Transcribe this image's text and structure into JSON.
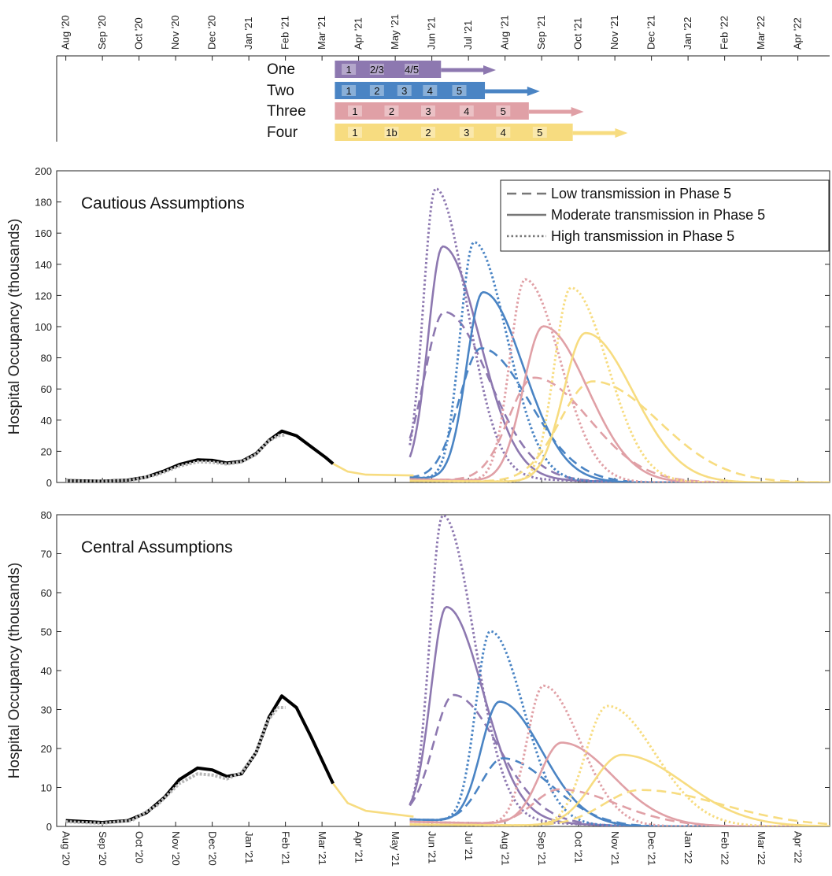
{
  "chart_data": {
    "months": [
      "Aug '20",
      "Sep '20",
      "Oct '20",
      "Nov '20",
      "Dec '20",
      "Jan '21",
      "Feb '21",
      "Mar '21",
      "Apr '21",
      "May '21",
      "Jun '21",
      "Jul '21",
      "Aug '21",
      "Sep '21",
      "Oct '21",
      "Nov '21",
      "Dec '21",
      "Jan '22",
      "Feb '22",
      "Mar '22",
      "Apr '22"
    ],
    "roadmap": {
      "scenarios": [
        {
          "name": "One",
          "color": "#8d78b0",
          "end_month": 2.9,
          "arrow_end": 4.4,
          "phases": [
            {
              "label": "1",
              "at": 0.38
            },
            {
              "label": "2/3",
              "at": 1.15
            },
            {
              "label": "4/5",
              "at": 2.1
            }
          ]
        },
        {
          "name": "Two",
          "color": "#4a84c4",
          "end_month": 4.1,
          "arrow_end": 5.6,
          "phases": [
            {
              "label": "1",
              "at": 0.38
            },
            {
              "label": "2",
              "at": 1.15
            },
            {
              "label": "3",
              "at": 1.9
            },
            {
              "label": "4",
              "at": 2.6
            },
            {
              "label": "5",
              "at": 3.4
            }
          ]
        },
        {
          "name": "Three",
          "color": "#e0a0a6",
          "end_month": 5.3,
          "arrow_end": 6.8,
          "phases": [
            {
              "label": "1",
              "at": 0.55
            },
            {
              "label": "2",
              "at": 1.55
            },
            {
              "label": "3",
              "at": 2.55
            },
            {
              "label": "4",
              "at": 3.6
            },
            {
              "label": "5",
              "at": 4.6
            }
          ]
        },
        {
          "name": "Four",
          "color": "#f7dc80",
          "end_month": 6.5,
          "arrow_end": 8.0,
          "phases": [
            {
              "label": "1",
              "at": 0.55
            },
            {
              "label": "1b",
              "at": 1.55
            },
            {
              "label": "2",
              "at": 2.55
            },
            {
              "label": "3",
              "at": 3.6
            },
            {
              "label": "4",
              "at": 4.6
            },
            {
              "label": "5",
              "at": 5.6
            }
          ]
        }
      ]
    },
    "legend": [
      {
        "label": "Low transmission in Phase 5",
        "style": "dashed"
      },
      {
        "label": "Moderate transmission in Phase 5",
        "style": "solid"
      },
      {
        "label": "High transmission in Phase 5",
        "style": "dotted"
      }
    ],
    "panels": [
      {
        "title": "Cautious Assumptions",
        "ylabel": "Hospital Occupancy (thousands)",
        "ylim": [
          0,
          200
        ],
        "yticks": [
          0,
          20,
          40,
          60,
          80,
          100,
          120,
          140,
          160,
          180,
          200
        ],
        "history_points": [
          [
            0,
            1.2
          ],
          [
            1,
            0.8
          ],
          [
            1.7,
            1.5
          ],
          [
            2.2,
            3.5
          ],
          [
            2.7,
            7.5
          ],
          [
            3.1,
            11.5
          ],
          [
            3.6,
            14.5
          ],
          [
            4.0,
            14.2
          ],
          [
            4.4,
            12.5
          ],
          [
            4.8,
            13.5
          ],
          [
            5.2,
            18.5
          ],
          [
            5.55,
            27
          ],
          [
            5.9,
            33
          ],
          [
            6.3,
            30
          ],
          [
            6.7,
            23
          ],
          [
            7.1,
            16
          ],
          [
            7.3,
            12
          ]
        ],
        "observed_points": [
          [
            0,
            1.0
          ],
          [
            1,
            0.7
          ],
          [
            1.8,
            1.5
          ],
          [
            2.5,
            5
          ],
          [
            3.1,
            10.5
          ],
          [
            3.6,
            13.2
          ],
          [
            4.0,
            13.0
          ],
          [
            4.4,
            11.8
          ],
          [
            4.8,
            13.2
          ],
          [
            5.2,
            18
          ],
          [
            5.5,
            26
          ],
          [
            5.8,
            30
          ],
          [
            6.0,
            30.5
          ]
        ],
        "bridge_points": [
          [
            7.3,
            12
          ],
          [
            7.7,
            7
          ],
          [
            8.2,
            5
          ],
          [
            9.5,
            4.5
          ]
        ],
        "curves": [
          {
            "scenario": "One",
            "style": "dashed",
            "peak": {
              "month": 10.35,
              "value": 107
            },
            "floor": 4.5,
            "start": 9.4,
            "w_rise": 0.55,
            "w_fall": 1.2
          },
          {
            "scenario": "One",
            "style": "solid",
            "peak": {
              "month": 10.3,
              "value": 149
            },
            "floor": 4.5,
            "start": 9.4,
            "w_rise": 0.4,
            "w_fall": 1.0
          },
          {
            "scenario": "One",
            "style": "dotted",
            "peak": {
              "month": 10.1,
              "value": 186
            },
            "floor": 4.5,
            "start": 9.4,
            "w_rise": 0.33,
            "w_fall": 0.85
          },
          {
            "scenario": "Two",
            "style": "dashed",
            "peak": {
              "month": 11.35,
              "value": 85
            },
            "floor": 3,
            "start": 9.4,
            "w_rise": 0.6,
            "w_fall": 1.3
          },
          {
            "scenario": "Two",
            "style": "solid",
            "peak": {
              "month": 11.4,
              "value": 121
            },
            "floor": 3,
            "start": 9.4,
            "w_rise": 0.45,
            "w_fall": 1.1
          },
          {
            "scenario": "Two",
            "style": "dotted",
            "peak": {
              "month": 11.15,
              "value": 153
            },
            "floor": 3,
            "start": 9.4,
            "w_rise": 0.38,
            "w_fall": 0.9
          },
          {
            "scenario": "Three",
            "style": "dashed",
            "peak": {
              "month": 12.8,
              "value": 67
            },
            "floor": 2,
            "start": 9.4,
            "w_rise": 0.7,
            "w_fall": 1.5
          },
          {
            "scenario": "Three",
            "style": "solid",
            "peak": {
              "month": 13.05,
              "value": 100
            },
            "floor": 2,
            "start": 9.4,
            "w_rise": 0.55,
            "w_fall": 1.2
          },
          {
            "scenario": "Three",
            "style": "dotted",
            "peak": {
              "month": 12.55,
              "value": 130
            },
            "floor": 2,
            "start": 9.4,
            "w_rise": 0.42,
            "w_fall": 0.95
          },
          {
            "scenario": "Four",
            "style": "dashed",
            "peak": {
              "month": 14.4,
              "value": 65
            },
            "floor": 1,
            "start": 9.4,
            "w_rise": 0.9,
            "w_fall": 1.8
          },
          {
            "scenario": "Four",
            "style": "solid",
            "peak": {
              "month": 14.2,
              "value": 96
            },
            "floor": 1,
            "start": 9.4,
            "w_rise": 0.6,
            "w_fall": 1.3
          },
          {
            "scenario": "Four",
            "style": "dotted",
            "peak": {
              "month": 13.8,
              "value": 125
            },
            "floor": 1,
            "start": 9.4,
            "w_rise": 0.45,
            "w_fall": 1.0
          }
        ]
      },
      {
        "title": "Central Assumptions",
        "ylabel": "Hospital Occupancy (thousands)",
        "ylim": [
          0,
          80
        ],
        "yticks": [
          0,
          10,
          20,
          30,
          40,
          50,
          60,
          70,
          80
        ],
        "history_points": [
          [
            0,
            1.5
          ],
          [
            1,
            1.0
          ],
          [
            1.7,
            1.5
          ],
          [
            2.2,
            3.5
          ],
          [
            2.7,
            7.5
          ],
          [
            3.1,
            12
          ],
          [
            3.6,
            15
          ],
          [
            4.0,
            14.5
          ],
          [
            4.4,
            12.8
          ],
          [
            4.8,
            13.5
          ],
          [
            5.2,
            19
          ],
          [
            5.55,
            28
          ],
          [
            5.9,
            33.5
          ],
          [
            6.3,
            30.5
          ],
          [
            6.7,
            23
          ],
          [
            7.1,
            15
          ],
          [
            7.3,
            11
          ]
        ],
        "observed_points": [
          [
            0,
            1.2
          ],
          [
            1,
            0.8
          ],
          [
            1.8,
            1.5
          ],
          [
            2.5,
            5.5
          ],
          [
            3.1,
            11
          ],
          [
            3.6,
            13.5
          ],
          [
            4.0,
            13.2
          ],
          [
            4.4,
            12.2
          ],
          [
            4.8,
            13.8
          ],
          [
            5.2,
            19
          ],
          [
            5.5,
            27
          ],
          [
            5.8,
            30.5
          ],
          [
            6.0,
            30.5
          ]
        ],
        "bridge_points": [
          [
            7.3,
            11
          ],
          [
            7.7,
            6
          ],
          [
            8.2,
            4
          ],
          [
            9.5,
            2.5
          ]
        ],
        "curves": [
          {
            "scenario": "One",
            "style": "dashed",
            "peak": {
              "month": 10.6,
              "value": 32.5
            },
            "floor": 2.5,
            "start": 9.4,
            "w_rise": 0.55,
            "w_fall": 1.2
          },
          {
            "scenario": "One",
            "style": "solid",
            "peak": {
              "month": 10.4,
              "value": 55
            },
            "floor": 2.5,
            "start": 9.4,
            "w_rise": 0.42,
            "w_fall": 1.0
          },
          {
            "scenario": "One",
            "style": "dotted",
            "peak": {
              "month": 10.3,
              "value": 78.5
            },
            "floor": 2.5,
            "start": 9.4,
            "w_rise": 0.35,
            "w_fall": 0.85
          },
          {
            "scenario": "Two",
            "style": "dashed",
            "peak": {
              "month": 11.95,
              "value": 17
            },
            "floor": 1.8,
            "start": 9.4,
            "w_rise": 0.6,
            "w_fall": 1.3
          },
          {
            "scenario": "Two",
            "style": "solid",
            "peak": {
              "month": 11.85,
              "value": 31.5
            },
            "floor": 1.8,
            "start": 9.4,
            "w_rise": 0.5,
            "w_fall": 1.15
          },
          {
            "scenario": "Two",
            "style": "dotted",
            "peak": {
              "month": 11.6,
              "value": 49.5
            },
            "floor": 1.8,
            "start": 9.4,
            "w_rise": 0.4,
            "w_fall": 0.9
          },
          {
            "scenario": "Three",
            "style": "dashed",
            "peak": {
              "month": 13.5,
              "value": 9.5
            },
            "floor": 1.2,
            "start": 9.4,
            "w_rise": 0.7,
            "w_fall": 1.6
          },
          {
            "scenario": "Three",
            "style": "solid",
            "peak": {
              "month": 13.55,
              "value": 21.5
            },
            "floor": 1.2,
            "start": 9.4,
            "w_rise": 0.6,
            "w_fall": 1.4
          },
          {
            "scenario": "Three",
            "style": "dotted",
            "peak": {
              "month": 13.05,
              "value": 36
            },
            "floor": 1.2,
            "start": 9.4,
            "w_rise": 0.45,
            "w_fall": 1.0
          },
          {
            "scenario": "Four",
            "style": "dashed",
            "peak": {
              "month": 15.7,
              "value": 9.5
            },
            "floor": 0.5,
            "start": 9.4,
            "w_rise": 1.0,
            "w_fall": 2.2
          },
          {
            "scenario": "Four",
            "style": "solid",
            "peak": {
              "month": 15.2,
              "value": 18.5
            },
            "floor": 0.5,
            "start": 9.4,
            "w_rise": 0.8,
            "w_fall": 1.7
          },
          {
            "scenario": "Four",
            "style": "dotted",
            "peak": {
              "month": 14.8,
              "value": 31
            },
            "floor": 0.5,
            "start": 9.4,
            "w_rise": 0.6,
            "w_fall": 1.3
          }
        ]
      }
    ]
  }
}
